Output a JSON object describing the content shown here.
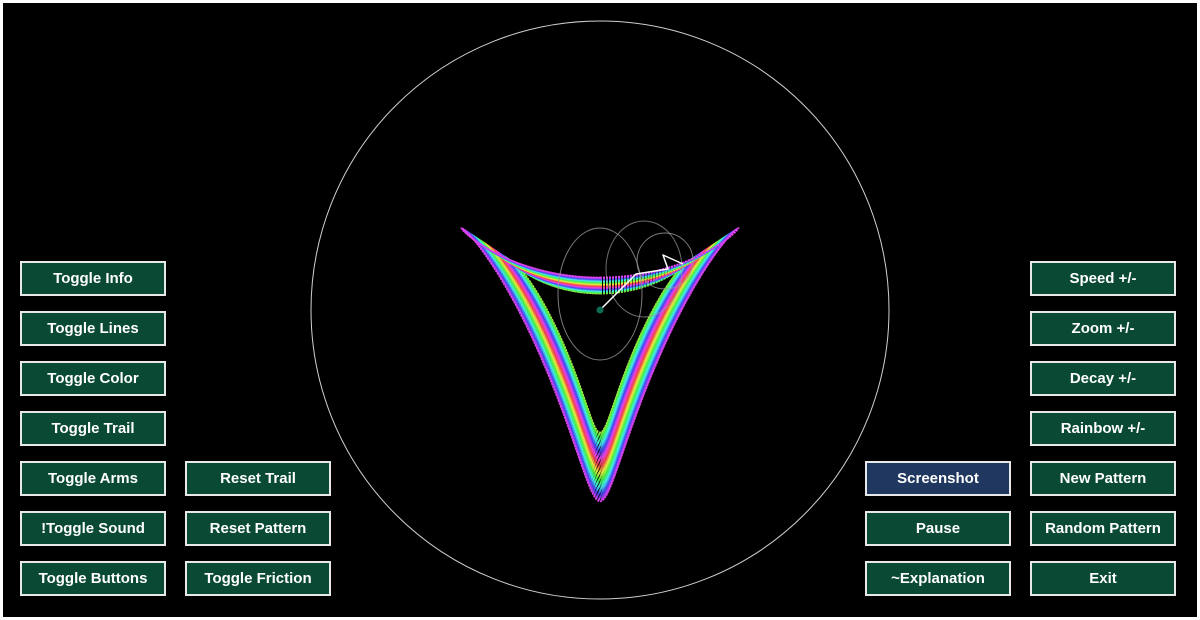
{
  "buttons": {
    "toggle_info": "Toggle Info",
    "toggle_lines": "Toggle Lines",
    "toggle_color": "Toggle Color",
    "toggle_trail": "Toggle Trail",
    "toggle_arms": "Toggle Arms",
    "toggle_sound": "!Toggle Sound",
    "toggle_buttons": "Toggle Buttons",
    "reset_trail": "Reset Trail",
    "reset_pattern": "Reset Pattern",
    "toggle_friction": "Toggle Friction",
    "screenshot": "Screenshot",
    "pause": "Pause",
    "explanation": "~Explanation",
    "speed": "Speed +/-",
    "zoom": "Zoom +/-",
    "decay": "Decay +/-",
    "rainbow": "Rainbow +/-",
    "new_pattern": "New Pattern",
    "random_pattern": "Random Pattern",
    "exit": "Exit"
  },
  "colors": {
    "background": "#000000",
    "button_fill": "#0a4a34",
    "button_active_fill": "#20375f",
    "button_border": "#e8e8e8",
    "guide_circle": "#d0d0d0",
    "arm_line": "#ffffff",
    "pivot_dot": "#0b6b50"
  },
  "active_button": "screenshot"
}
